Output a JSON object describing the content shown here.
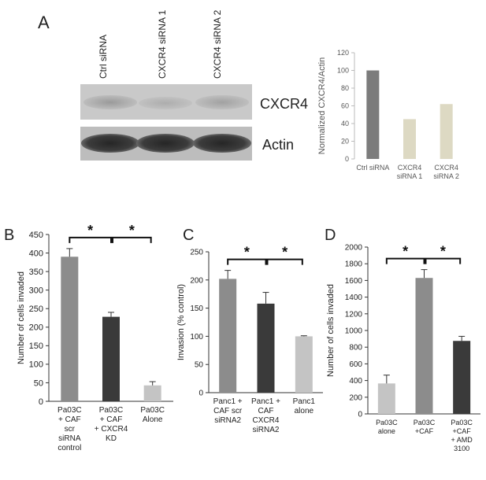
{
  "panels": {
    "A": "A",
    "B": "B",
    "C": "C",
    "D": "D"
  },
  "blot": {
    "lanes": [
      "Ctrl siRNA",
      "CXCR4 siRNA 1",
      "CXCR4 siRNA 2"
    ],
    "rows": [
      "CXCR4",
      "Actin"
    ]
  },
  "significance_mark": "*",
  "chart_data": [
    {
      "id": "A",
      "type": "bar",
      "categories": [
        [
          "Ctrl siRNA"
        ],
        [
          "CXCR4",
          "siRNA 1"
        ],
        [
          "CXCR4",
          "siRNA 2"
        ]
      ],
      "values": [
        100,
        45,
        62
      ],
      "errors": null,
      "colors": [
        "#7c7c7c",
        "#ddd9c3",
        "#ddd9c3"
      ],
      "ylabel": "Normalized CXCR4/Actin",
      "ylim": [
        0,
        120
      ],
      "yticks": [
        0,
        20,
        40,
        60,
        80,
        100,
        120
      ],
      "grid": false
    },
    {
      "id": "B",
      "type": "bar",
      "categories": [
        [
          "Pa03C",
          "+ CAF",
          "scr",
          "siRNA",
          "control"
        ],
        [
          "Pa03C",
          "+ CAF",
          "+ CXCR4",
          "KD"
        ],
        [
          "Pa03C",
          "Alone"
        ]
      ],
      "values": [
        390,
        228,
        43
      ],
      "errors": [
        22,
        12,
        10
      ],
      "colors": [
        "#8c8c8c",
        "#3a3a3a",
        "#c4c4c4"
      ],
      "ylabel": "Number  of cells invaded",
      "ylim": [
        0,
        450
      ],
      "yticks": [
        0,
        50,
        100,
        150,
        200,
        250,
        300,
        350,
        400,
        450
      ],
      "grid": false
    },
    {
      "id": "C",
      "type": "bar",
      "categories": [
        [
          "Panc1 +",
          "CAF scr",
          "siRNA2"
        ],
        [
          "Panc1 +",
          "CAF",
          "CXCR4",
          "siRNA2"
        ],
        [
          "Panc1",
          "alone"
        ]
      ],
      "values": [
        202,
        158,
        100
      ],
      "errors": [
        15,
        20,
        1
      ],
      "colors": [
        "#8c8c8c",
        "#3a3a3a",
        "#c4c4c4"
      ],
      "ylabel": "Invasion (% control)",
      "ylim": [
        0,
        250
      ],
      "yticks": [
        0,
        50,
        100,
        150,
        200,
        250
      ],
      "grid": false
    },
    {
      "id": "D",
      "type": "bar",
      "categories": [
        [
          "Pa03C",
          "alone"
        ],
        [
          "Pa03C",
          "+CAF"
        ],
        [
          "Pa03C",
          "+CAF",
          "+ AMD",
          "3100"
        ]
      ],
      "values": [
        365,
        1630,
        875
      ],
      "errors": [
        100,
        100,
        55
      ],
      "colors": [
        "#c4c4c4",
        "#8c8c8c",
        "#3a3a3a"
      ],
      "ylabel": "Number of cells invaded",
      "ylim": [
        0,
        2000
      ],
      "yticks": [
        0,
        200,
        400,
        600,
        800,
        1000,
        1200,
        1400,
        1600,
        1800,
        2000
      ],
      "grid": false
    }
  ]
}
